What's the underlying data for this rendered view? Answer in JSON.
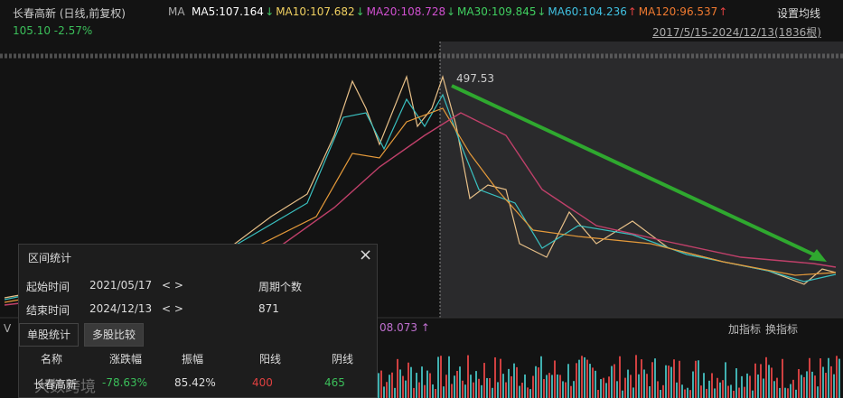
{
  "header": {
    "stock": "长春高新 (日线,前复权)",
    "ma_label": "MA",
    "ma": [
      {
        "text": "MA5:107.164",
        "arrow": "↓"
      },
      {
        "text": "MA10:107.682",
        "arrow": "↓"
      },
      {
        "text": "MA20:108.728",
        "arrow": "↓"
      },
      {
        "text": "MA30:109.845",
        "arrow": "↓"
      },
      {
        "text": "MA60:104.236",
        "arrow": "↑"
      },
      {
        "text": "MA120:96.537",
        "arrow": "↑"
      }
    ],
    "settings": "设置均线",
    "price": "105.10 -2.57%",
    "range": "2017/5/15-2024/12/13(1836根)"
  },
  "chart": {
    "peak_label": "497.53"
  },
  "indicator": {
    "value": "08.073",
    "arrow": "↑",
    "add": "加指标",
    "switch": "换指标",
    "left": "V"
  },
  "panel": {
    "title": "区间统计",
    "close": "×",
    "rows": [
      [
        "起始时间",
        "2021/05/17",
        "< >",
        "周期个数"
      ],
      [
        "结束时间",
        "2024/12/13",
        "< >",
        "871"
      ]
    ],
    "tabs": [
      "单股统计",
      "多股比较"
    ],
    "table": {
      "header": [
        "名称",
        "涨跌幅",
        "振幅",
        "阳线",
        "阴线"
      ],
      "rows": [
        [
          "长春高新",
          "-78.63%",
          "85.42%",
          "400",
          "465"
        ]
      ]
    }
  },
  "watermark": "大数跨境"
}
